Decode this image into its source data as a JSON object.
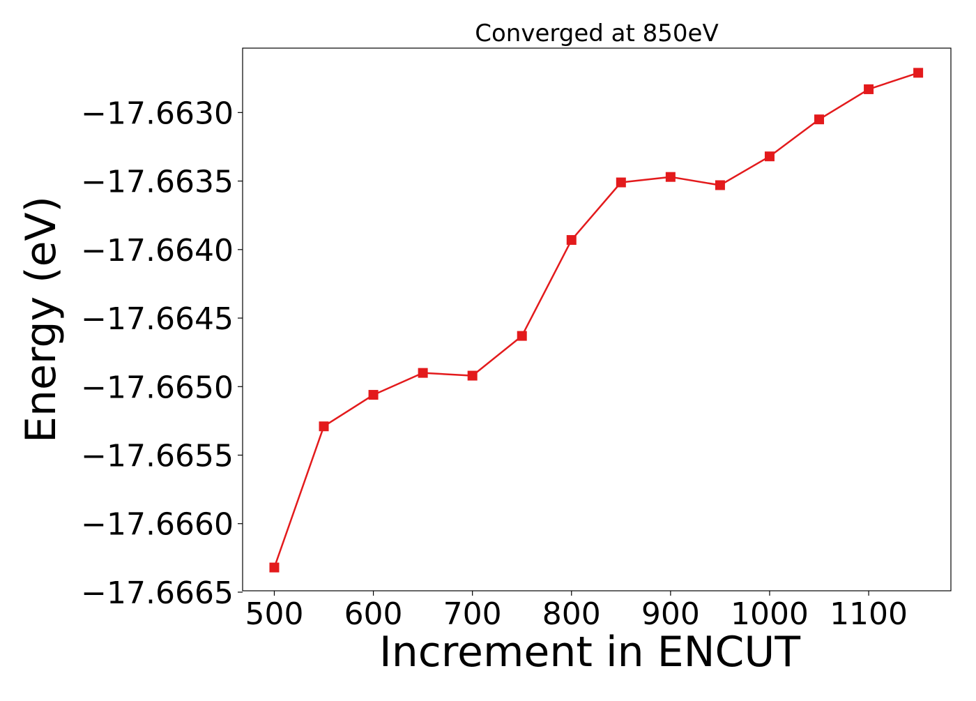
{
  "chart_data": {
    "type": "line",
    "title": "Converged at 850eV",
    "xlabel": "Increment in ENCUT",
    "ylabel": "Energy (eV)",
    "x": [
      500,
      550,
      600,
      650,
      700,
      750,
      800,
      850,
      900,
      950,
      1000,
      1050,
      1100,
      1150
    ],
    "series": [
      {
        "values": [
          -17.66632,
          -17.66529,
          -17.66506,
          -17.6649,
          -17.66492,
          -17.66463,
          -17.66393,
          -17.66351,
          -17.66347,
          -17.66353,
          -17.66332,
          -17.66305,
          -17.66283,
          -17.66271
        ],
        "color": "#e31a1c",
        "marker": "square"
      }
    ],
    "xlim": [
      468,
      1183
    ],
    "ylim": [
      -17.66649,
      -17.66253
    ],
    "xticks": [
      500,
      600,
      700,
      800,
      900,
      1000,
      1100
    ],
    "xtick_labels": [
      "500",
      "600",
      "700",
      "800",
      "900",
      "1000",
      "1100"
    ],
    "yticks": [
      -17.6665,
      -17.666,
      -17.6655,
      -17.665,
      -17.6645,
      -17.664,
      -17.6635,
      -17.663
    ],
    "ytick_labels": [
      "−17.6665",
      "−17.6660",
      "−17.6655",
      "−17.6650",
      "−17.6645",
      "−17.6640",
      "−17.6635",
      "−17.6630"
    ],
    "grid": false,
    "legend": "none"
  }
}
